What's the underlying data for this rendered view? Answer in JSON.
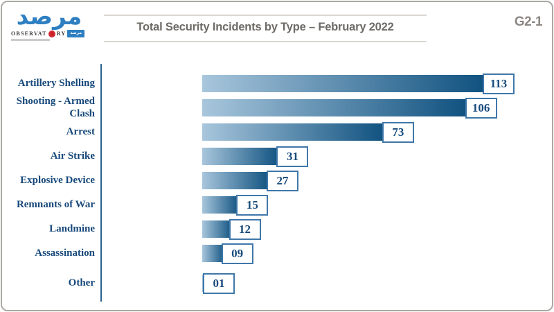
{
  "logo": {
    "arabic_title": "مرصد",
    "latin_line_pre": "OBSERVAT",
    "latin_line_post": "RY",
    "badge_text": "مرصد"
  },
  "header": {
    "title": "Total Security Incidents by Type – February 2022",
    "figure_code": "G2-1"
  },
  "chart_data": {
    "type": "bar",
    "orientation": "horizontal",
    "title": "Total Security Incidents by Type – February 2022",
    "categories": [
      "Artillery Shelling",
      "Shooting - Armed Clash",
      "Arrest",
      "Air Strike",
      "Explosive Device",
      "Remnants of War",
      "Landmine",
      "Assassination",
      "Other"
    ],
    "values": [
      113,
      106,
      73,
      31,
      27,
      15,
      12,
      9,
      1
    ],
    "value_labels": [
      "113",
      "106",
      "73",
      "31",
      "27",
      "15",
      "12",
      "09",
      "01"
    ],
    "xlim": [
      0,
      113
    ],
    "legend": false,
    "grid": false,
    "colors": {
      "bar_gradient_start": "#a8c6dc",
      "bar_gradient_end": "#0f517f",
      "axis": "#2a6390",
      "category_text": "#17497b",
      "value_text": "#164a7c",
      "value_box_border": "#3f77a9",
      "title_text": "#6e6a66",
      "frame_border": "#aba8a5"
    }
  }
}
